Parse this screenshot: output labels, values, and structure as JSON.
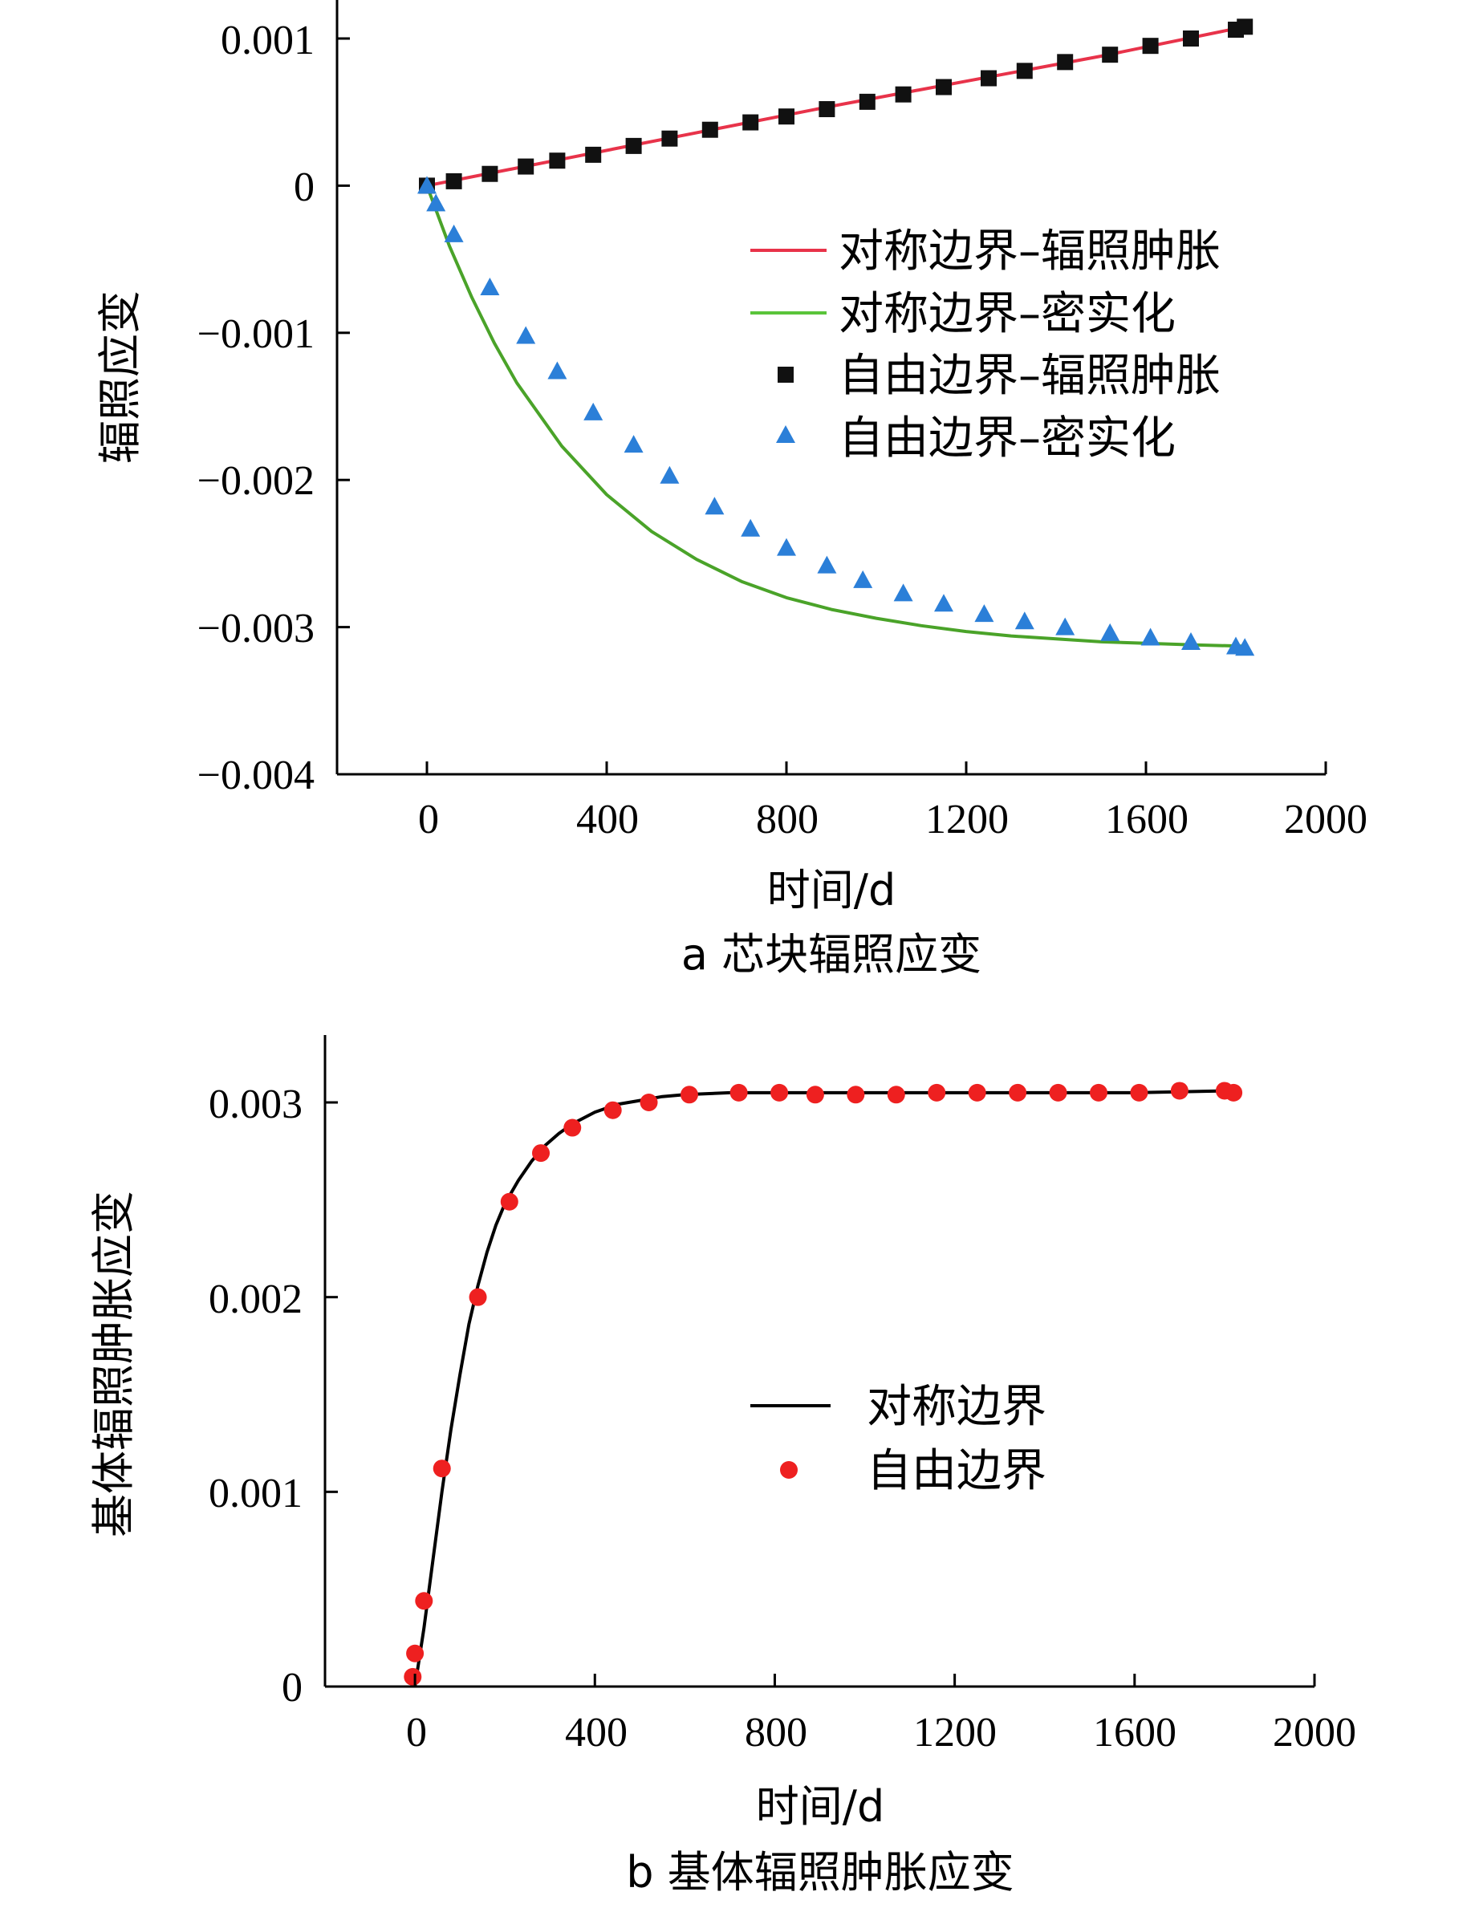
{
  "chart_data": [
    {
      "type": "line",
      "caption": "a  芯块辐照应变",
      "xlabel": "时间/d",
      "ylabel": "辐照应变",
      "xlim": [
        -200,
        2000
      ],
      "ylim": [
        -0.004,
        0.0012
      ],
      "xticks": [
        0,
        400,
        800,
        1200,
        1600,
        2000
      ],
      "xtick_labels": [
        "0",
        "400",
        "800",
        "1200",
        "1600",
        "2000"
      ],
      "yticks": [
        0.001,
        0,
        -0.001,
        -0.002,
        -0.003,
        -0.004
      ],
      "ytick_labels": [
        "0.001",
        "0",
        "−0.001",
        "−0.002",
        "−0.003",
        "−0.004"
      ],
      "grid": false,
      "legend_position": "center-right",
      "series": [
        {
          "name": "对称边界–辐照肿胀",
          "kind": "line",
          "color": "#e8334a",
          "x": [
            0,
            300,
            600,
            900,
            1200,
            1500,
            1820
          ],
          "y": [
            0,
            0.00018,
            0.00036,
            0.00054,
            0.00071,
            0.00088,
            0.00108
          ]
        },
        {
          "name": "对称边界–密实化",
          "kind": "line",
          "color": "#4aa329",
          "x": [
            0,
            50,
            100,
            150,
            200,
            300,
            400,
            500,
            600,
            700,
            800,
            900,
            1000,
            1100,
            1200,
            1300,
            1400,
            1500,
            1600,
            1700,
            1820
          ],
          "y": [
            0,
            -0.00041,
            -0.00076,
            -0.00107,
            -0.00134,
            -0.00177,
            -0.0021,
            -0.00235,
            -0.00254,
            -0.00269,
            -0.0028,
            -0.00288,
            -0.00294,
            -0.00299,
            -0.00303,
            -0.00306,
            -0.00308,
            -0.0031,
            -0.00311,
            -0.00312,
            -0.00313
          ]
        },
        {
          "name": "自由边界–辐照肿胀",
          "kind": "scatter",
          "marker": "square",
          "color": "#111111",
          "x": [
            0,
            60,
            140,
            220,
            290,
            370,
            460,
            540,
            630,
            720,
            800,
            890,
            980,
            1060,
            1150,
            1250,
            1330,
            1420,
            1520,
            1610,
            1700,
            1800,
            1820
          ],
          "y": [
            0,
            3e-05,
            8e-05,
            0.00013,
            0.00017,
            0.00021,
            0.00027,
            0.00032,
            0.00038,
            0.00043,
            0.00047,
            0.00052,
            0.00057,
            0.00062,
            0.00067,
            0.00073,
            0.00078,
            0.00084,
            0.00089,
            0.00095,
            0.001,
            0.00106,
            0.00108
          ]
        },
        {
          "name": "自由边界–密实化",
          "kind": "scatter",
          "marker": "triangle",
          "color": "#2b7fd8",
          "x": [
            0,
            20,
            60,
            140,
            220,
            290,
            370,
            460,
            540,
            640,
            720,
            800,
            890,
            970,
            1060,
            1150,
            1240,
            1330,
            1420,
            1520,
            1610,
            1700,
            1800,
            1820
          ],
          "y": [
            0,
            -0.00012,
            -0.00033,
            -0.00069,
            -0.00102,
            -0.00126,
            -0.00154,
            -0.00176,
            -0.00197,
            -0.00218,
            -0.00233,
            -0.00246,
            -0.00258,
            -0.00268,
            -0.00277,
            -0.00284,
            -0.00291,
            -0.00296,
            -0.003,
            -0.00304,
            -0.00307,
            -0.0031,
            -0.00313,
            -0.00314
          ]
        }
      ]
    },
    {
      "type": "line",
      "caption": "b  基体辐照肿胀应变",
      "xlabel": "时间/d",
      "ylabel": "基体辐照肿胀应变",
      "xlim": [
        -200,
        2000
      ],
      "ylim": [
        0,
        0.0033
      ],
      "xticks": [
        0,
        400,
        800,
        1200,
        1600,
        2000
      ],
      "xtick_labels": [
        "0",
        "400",
        "800",
        "1200",
        "1600",
        "2000"
      ],
      "yticks": [
        0.003,
        0.002,
        0.001,
        0
      ],
      "ytick_labels": [
        "0.003",
        "0.002",
        "0.001",
        "0"
      ],
      "grid": false,
      "legend_position": "center-right",
      "series": [
        {
          "name": "对称边界",
          "kind": "line",
          "color": "#000000",
          "x": [
            0,
            20,
            40,
            60,
            80,
            100,
            120,
            140,
            160,
            180,
            200,
            230,
            260,
            290,
            320,
            350,
            400,
            450,
            500,
            550,
            600,
            700,
            800,
            1000,
            1200,
            1400,
            1600,
            1820
          ],
          "y": [
            0,
            0.0003,
            0.00065,
            0.001,
            0.00132,
            0.0016,
            0.00186,
            0.00206,
            0.00223,
            0.00237,
            0.00248,
            0.0026,
            0.0027,
            0.00278,
            0.00284,
            0.00289,
            0.00295,
            0.00299,
            0.00301,
            0.00303,
            0.00304,
            0.00305,
            0.00305,
            0.00305,
            0.00305,
            0.00305,
            0.00305,
            0.00306
          ]
        },
        {
          "name": "自由边界",
          "kind": "scatter",
          "marker": "circle",
          "color": "#ee2020",
          "x": [
            -5,
            0,
            20,
            60,
            140,
            210,
            280,
            350,
            440,
            520,
            610,
            720,
            810,
            890,
            980,
            1070,
            1160,
            1250,
            1340,
            1430,
            1520,
            1610,
            1700,
            1800,
            1820
          ],
          "y": [
            5e-05,
            0.00017,
            0.00044,
            0.00112,
            0.002,
            0.00249,
            0.00274,
            0.00287,
            0.00296,
            0.003,
            0.00304,
            0.00305,
            0.00305,
            0.00304,
            0.00304,
            0.00304,
            0.00305,
            0.00305,
            0.00305,
            0.00305,
            0.00305,
            0.00305,
            0.00306,
            0.00306,
            0.00305
          ]
        }
      ]
    }
  ]
}
